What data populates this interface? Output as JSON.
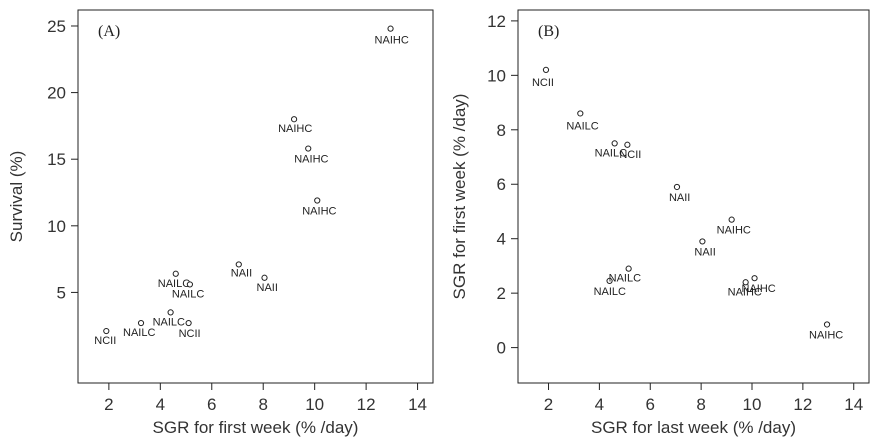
{
  "chart_data": [
    {
      "type": "scatter",
      "panel_label": "(A)",
      "xlabel": "SGR for first week (% /day)",
      "ylabel": "Survival (%)",
      "xlim": [
        0.8,
        14.6
      ],
      "ylim": [
        -1.8,
        26.2
      ],
      "xticks": [
        2,
        4,
        6,
        8,
        10,
        12,
        14
      ],
      "yticks": [
        5,
        10,
        15,
        20,
        25
      ],
      "grid": false,
      "points": [
        {
          "x": 12.95,
          "y": 24.8,
          "label": "NAIHC"
        },
        {
          "x": 9.2,
          "y": 18.0,
          "label": "NAIHC"
        },
        {
          "x": 9.75,
          "y": 15.8,
          "label": "NAIHC"
        },
        {
          "x": 10.1,
          "y": 11.9,
          "label": "NAIHC"
        },
        {
          "x": 7.05,
          "y": 7.1,
          "label": "NAII"
        },
        {
          "x": 8.05,
          "y": 6.1,
          "label": "NAII"
        },
        {
          "x": 4.6,
          "y": 6.4,
          "label": "NAILC"
        },
        {
          "x": 5.15,
          "y": 5.6,
          "label": "NAILC"
        },
        {
          "x": 4.4,
          "y": 3.5,
          "label": "NAILC"
        },
        {
          "x": 3.25,
          "y": 2.7,
          "label": "NAILC"
        },
        {
          "x": 5.1,
          "y": 2.7,
          "label": "NCII"
        },
        {
          "x": 1.9,
          "y": 2.1,
          "label": "NCII"
        }
      ]
    },
    {
      "type": "scatter",
      "panel_label": "(B)",
      "xlabel": "SGR for last week (% /day)",
      "ylabel": "SGR for first week (% /day)",
      "xlim": [
        0.8,
        14.6
      ],
      "ylim": [
        -1.3,
        12.4
      ],
      "xticks": [
        2,
        4,
        6,
        8,
        10,
        12,
        14
      ],
      "yticks": [
        0,
        2,
        4,
        6,
        8,
        10,
        12
      ],
      "grid": false,
      "points": [
        {
          "x": 1.9,
          "y": 10.2,
          "label": "NCII"
        },
        {
          "x": 3.25,
          "y": 8.6,
          "label": "NAILC"
        },
        {
          "x": 4.6,
          "y": 7.5,
          "label": "NAILC"
        },
        {
          "x": 5.1,
          "y": 7.45,
          "label": "NCII"
        },
        {
          "x": 7.05,
          "y": 5.9,
          "label": "NAII"
        },
        {
          "x": 8.05,
          "y": 3.9,
          "label": "NAII"
        },
        {
          "x": 9.2,
          "y": 4.7,
          "label": "NAIHC"
        },
        {
          "x": 4.4,
          "y": 2.45,
          "label": "NAILC"
        },
        {
          "x": 5.15,
          "y": 2.9,
          "label": "NAILC"
        },
        {
          "x": 9.75,
          "y": 2.4,
          "label": "NAIHC"
        },
        {
          "x": 10.1,
          "y": 2.55,
          "label": "NAIHC"
        },
        {
          "x": 12.95,
          "y": 0.85,
          "label": "NAIHC"
        }
      ]
    }
  ]
}
